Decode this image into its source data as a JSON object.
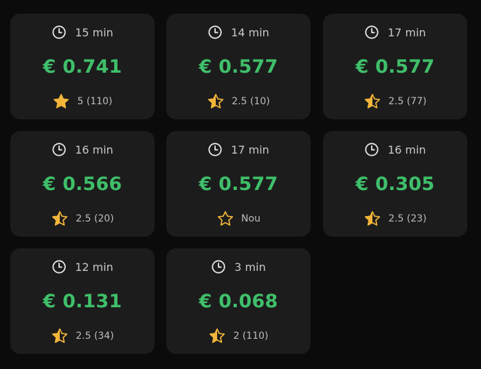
{
  "currency_symbol": "€",
  "colors": {
    "background": "#0b0b0b",
    "card": "#1c1c1c",
    "price": "#3fbf6a",
    "star": "#f2b53a",
    "text": "#c9c9c9"
  },
  "cards": [
    {
      "time": "15 min",
      "price": "€ 0.741",
      "rating_text": "5 (110)",
      "rating": 5,
      "star_icon": "star-full-icon"
    },
    {
      "time": "14 min",
      "price": "€ 0.577",
      "rating_text": "2.5 (10)",
      "rating": 2.5,
      "star_icon": "star-half-icon"
    },
    {
      "time": "17 min",
      "price": "€ 0.577",
      "rating_text": "2.5 (77)",
      "rating": 2.5,
      "star_icon": "star-half-icon"
    },
    {
      "time": "16 min",
      "price": "€ 0.566",
      "rating_text": "2.5 (20)",
      "rating": 2.5,
      "star_icon": "star-half-icon"
    },
    {
      "time": "17 min",
      "price": "€ 0.577",
      "rating_text": "Nou",
      "rating": 0,
      "star_icon": "star-outline-icon"
    },
    {
      "time": "16 min",
      "price": "€ 0.305",
      "rating_text": "2.5 (23)",
      "rating": 2.5,
      "star_icon": "star-half-icon"
    },
    {
      "time": "12 min",
      "price": "€ 0.131",
      "rating_text": "2.5 (34)",
      "rating": 2.5,
      "star_icon": "star-half-icon"
    },
    {
      "time": "3 min",
      "price": "€ 0.068",
      "rating_text": "2 (110)",
      "rating": 2,
      "star_icon": "star-half-icon"
    }
  ]
}
